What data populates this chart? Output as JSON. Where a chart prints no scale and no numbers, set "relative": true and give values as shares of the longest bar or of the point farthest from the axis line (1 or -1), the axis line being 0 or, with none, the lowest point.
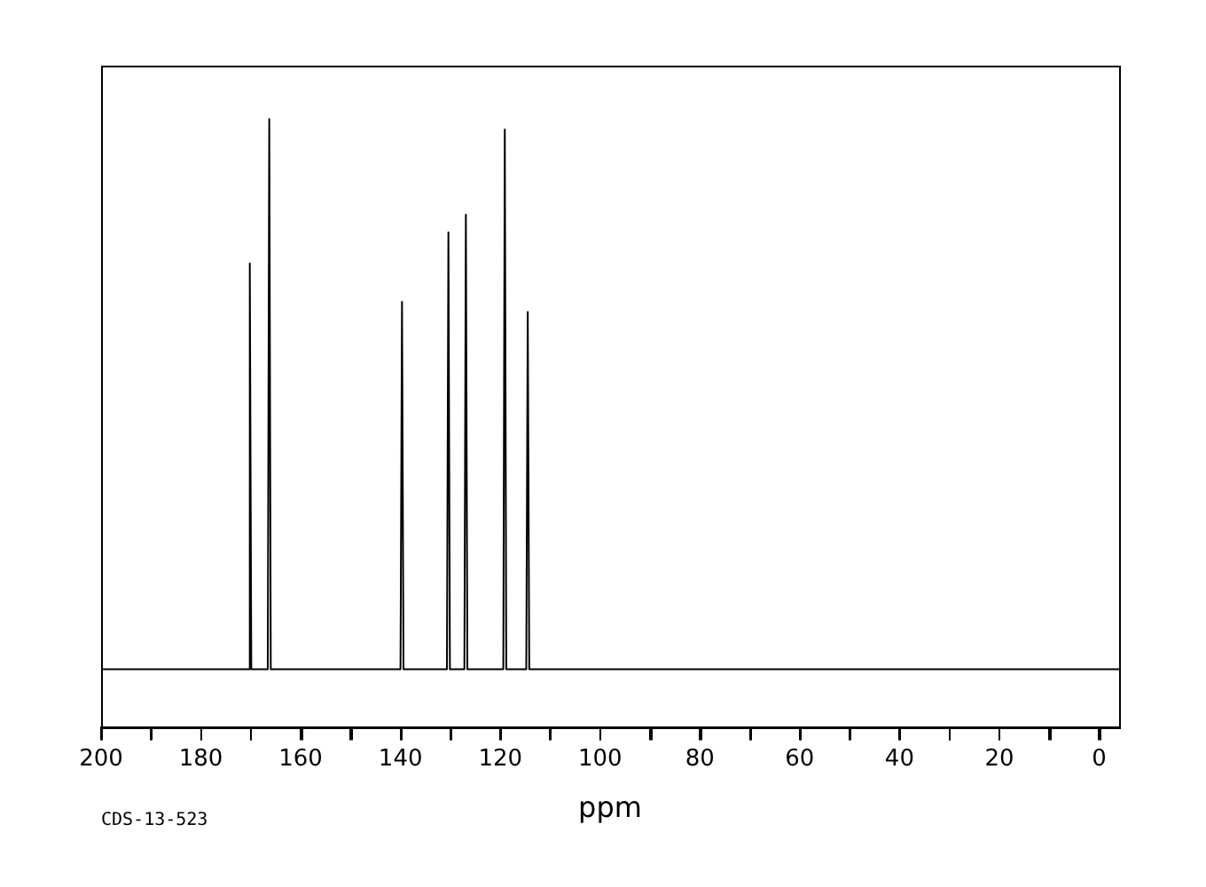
{
  "chart_data": {
    "type": "line",
    "relative": true,
    "xlabel": "ppm",
    "annotations": [
      "CDS-13-523"
    ],
    "xlim": [
      200,
      -4
    ],
    "xticks": [
      200,
      {
        "value": 190,
        "label": null
      },
      180,
      {
        "value": 170,
        "label": null
      },
      160,
      {
        "value": 150,
        "label": null
      },
      140,
      {
        "value": 130,
        "label": null
      },
      120,
      {
        "value": 110,
        "label": null
      },
      100,
      {
        "value": 90,
        "label": null
      },
      80,
      {
        "value": 70,
        "label": null
      },
      60,
      {
        "value": 50,
        "label": null
      },
      40,
      {
        "value": 30,
        "label": null
      },
      20,
      {
        "value": 10,
        "label": null
      },
      0
    ],
    "grid": false,
    "legend": false,
    "marker": "none",
    "line_style": "solid",
    "series": [
      {
        "color": "#000000",
        "x": [
          200,
          170.5,
          170.2,
          169.9,
          166.6,
          166.3,
          166.0,
          140.0,
          139.7,
          139.4,
          130.7,
          130.4,
          130.1,
          127.2,
          126.9,
          126.6,
          119.4,
          119.1,
          118.8,
          114.8,
          114.5,
          114.2,
          -4
        ],
        "values": [
          0.096,
          0.096,
          0.763,
          0.096,
          0.096,
          1,
          0.096,
          0.096,
          0.7,
          0.096,
          0.096,
          0.814,
          0.096,
          0.096,
          0.843,
          0.096,
          0.096,
          0.983,
          0.096,
          0.096,
          0.683,
          0.096,
          0.096
        ]
      }
    ]
  }
}
